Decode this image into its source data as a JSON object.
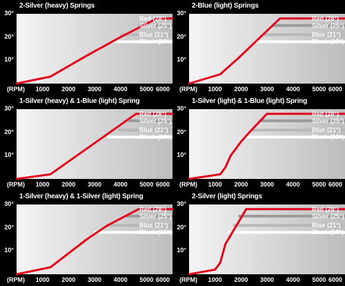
{
  "legend_items": [
    "Red (28°)",
    "Silver (25°)",
    "Blue (21°)",
    "Black (18°)"
  ],
  "colors": {
    "background": "#000000",
    "red": "#e3001b",
    "silver": "#9b9b9b",
    "blue": "#b8b8b8",
    "black": "#ffffff"
  },
  "chart_data": [
    {
      "type": "line",
      "title": "2-Silver (heavy) Springs",
      "xlabel": "(RPM)",
      "xticks": [
        "1000",
        "2000",
        "3000",
        "4000",
        "5000",
        "6000"
      ],
      "yticks": [
        "10°",
        "20°",
        "30°"
      ],
      "xlim": [
        0,
        6000
      ],
      "ylim": [
        0,
        30
      ],
      "series": [
        {
          "name": "Red (28°)",
          "x": [
            0,
            1300,
            2700,
            4000,
            5400,
            6000
          ],
          "y": [
            0,
            3,
            12,
            20,
            28,
            28
          ]
        }
      ],
      "reference_lines": [
        {
          "name": "Silver (25°)",
          "y": 25,
          "x_start": 4700
        },
        {
          "name": "Blue (21°)",
          "y": 21,
          "x_start": 4000
        },
        {
          "name": "Black (18°)",
          "y": 18,
          "x_start": 3700
        }
      ]
    },
    {
      "type": "line",
      "title": "2-Blue (light) Springs",
      "xlabel": "(RPM)",
      "xticks": [
        "1000",
        "2000",
        "3000",
        "4000",
        "5000",
        "6000"
      ],
      "yticks": [
        "10°",
        "20°",
        "30°"
      ],
      "xlim": [
        0,
        6000
      ],
      "ylim": [
        0,
        30
      ],
      "series": [
        {
          "name": "Red (28°)",
          "x": [
            0,
            1200,
            1900,
            3500,
            6000
          ],
          "y": [
            0,
            4,
            11,
            28,
            28
          ]
        }
      ],
      "reference_lines": [
        {
          "name": "Silver (25°)",
          "y": 25,
          "x_start": 3200
        },
        {
          "name": "Blue (21°)",
          "y": 21,
          "x_start": 2800
        },
        {
          "name": "Black (18°)",
          "y": 18,
          "x_start": 2500
        }
      ]
    },
    {
      "type": "line",
      "title": "1-Silver (heavy) & 1-Blue (light) Spring",
      "xlabel": "(RPM)",
      "xticks": [
        "1000",
        "2000",
        "3000",
        "4000",
        "5000",
        "6000"
      ],
      "yticks": [
        "10°",
        "20°",
        "30°"
      ],
      "xlim": [
        0,
        6000
      ],
      "ylim": [
        0,
        30
      ],
      "series": [
        {
          "name": "Red (28°)",
          "x": [
            0,
            1300,
            2700,
            4600,
            6000
          ],
          "y": [
            0,
            2,
            13,
            28,
            28
          ]
        }
      ],
      "reference_lines": [
        {
          "name": "Silver (25°)",
          "y": 25,
          "x_start": 4300
        },
        {
          "name": "Blue (21°)",
          "y": 21,
          "x_start": 3900
        },
        {
          "name": "Black (18°)",
          "y": 18,
          "x_start": 3500
        }
      ]
    },
    {
      "type": "line",
      "title": "1-Silver (light) & 1-Blue (light) Spring",
      "xlabel": "(RPM)",
      "xticks": [
        "1000",
        "2000",
        "3000",
        "4000",
        "5000",
        "6000"
      ],
      "yticks": [
        "10°",
        "20°",
        "30°"
      ],
      "xlim": [
        0,
        6000
      ],
      "ylim": [
        0,
        30
      ],
      "series": [
        {
          "name": "Red (28°)",
          "x": [
            0,
            1200,
            1400,
            1600,
            2000,
            2400,
            3000,
            6000
          ],
          "y": [
            0,
            2,
            5,
            10,
            16,
            21,
            28,
            28
          ]
        }
      ],
      "reference_lines": [
        {
          "name": "Silver (25°)",
          "y": 25,
          "x_start": 2700
        },
        {
          "name": "Blue (21°)",
          "y": 21,
          "x_start": 2400
        },
        {
          "name": "Black (18°)",
          "y": 18,
          "x_start": 2200
        }
      ]
    },
    {
      "type": "line",
      "title": "1-Silver (heavy) & 1-Silver (light) Spring",
      "xlabel": "(RPM)",
      "xticks": [
        "1000",
        "2000",
        "3000",
        "4000",
        "5000",
        "6000"
      ],
      "yticks": [
        "10°",
        "20°",
        "30°"
      ],
      "xlim": [
        0,
        6000
      ],
      "ylim": [
        0,
        30
      ],
      "series": [
        {
          "name": "Red (28°)",
          "x": [
            0,
            1300,
            2700,
            3500,
            4700,
            6000
          ],
          "y": [
            0,
            3,
            15,
            21,
            28,
            28
          ]
        }
      ],
      "reference_lines": [
        {
          "name": "Silver (25°)",
          "y": 25,
          "x_start": 4200
        },
        {
          "name": "Blue (21°)",
          "y": 21,
          "x_start": 3500
        },
        {
          "name": "Black (18°)",
          "y": 18,
          "x_start": 3000
        }
      ]
    },
    {
      "type": "line",
      "title": "2-Silver (light) Springs",
      "xlabel": "(RPM)",
      "xticks": [
        "1000",
        "2000",
        "3000",
        "4000",
        "5000",
        "6000"
      ],
      "yticks": [
        "10°",
        "20°",
        "30°"
      ],
      "xlim": [
        0,
        6000
      ],
      "ylim": [
        0,
        30
      ],
      "series": [
        {
          "name": "Red (28°)",
          "x": [
            0,
            1000,
            1200,
            1400,
            2200,
            6000
          ],
          "y": [
            0,
            2,
            5,
            13,
            28,
            28
          ]
        }
      ],
      "reference_lines": [
        {
          "name": "Silver (25°)",
          "y": 25,
          "x_start": 1900
        },
        {
          "name": "Blue (21°)",
          "y": 21,
          "x_start": 1700
        },
        {
          "name": "Black (18°)",
          "y": 18,
          "x_start": 1500
        }
      ]
    }
  ]
}
